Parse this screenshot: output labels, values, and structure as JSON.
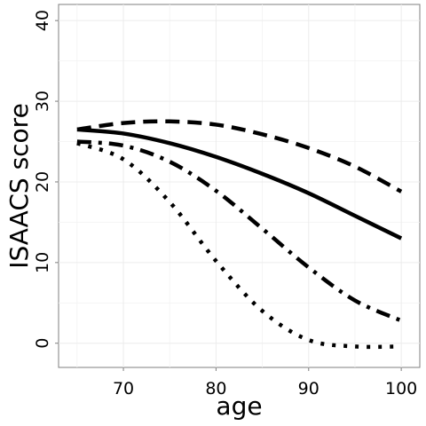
{
  "chart_data": {
    "type": "line",
    "title": "",
    "xlabel": "age",
    "ylabel": "ISAACS score",
    "xlim": [
      63,
      102
    ],
    "ylim": [
      -3,
      42
    ],
    "xticks": [
      70,
      80,
      90,
      100
    ],
    "yticks": [
      0,
      10,
      20,
      30,
      40
    ],
    "grid": true,
    "legend": "none",
    "series": [
      {
        "style": "solid",
        "x": [
          65,
          70,
          75,
          80,
          85,
          90,
          95,
          100
        ],
        "y": [
          26.5,
          26.0,
          24.8,
          23.1,
          21.0,
          18.6,
          15.8,
          13.0
        ]
      },
      {
        "style": "dashed",
        "x": [
          65,
          70,
          75,
          80,
          85,
          90,
          95,
          100
        ],
        "y": [
          26.5,
          27.3,
          27.5,
          27.1,
          25.9,
          24.2,
          21.9,
          18.8
        ]
      },
      {
        "style": "dotdash",
        "x": [
          65,
          70,
          75,
          80,
          85,
          90,
          95,
          100
        ],
        "y": [
          25.0,
          24.5,
          22.5,
          18.9,
          14.2,
          9.4,
          5.3,
          2.8
        ]
      },
      {
        "style": "dotted",
        "x": [
          65,
          70,
          75,
          80,
          85,
          90,
          95,
          100
        ],
        "y": [
          24.8,
          22.8,
          17.5,
          10.2,
          4.0,
          0.4,
          -0.4,
          -0.4
        ]
      }
    ]
  }
}
